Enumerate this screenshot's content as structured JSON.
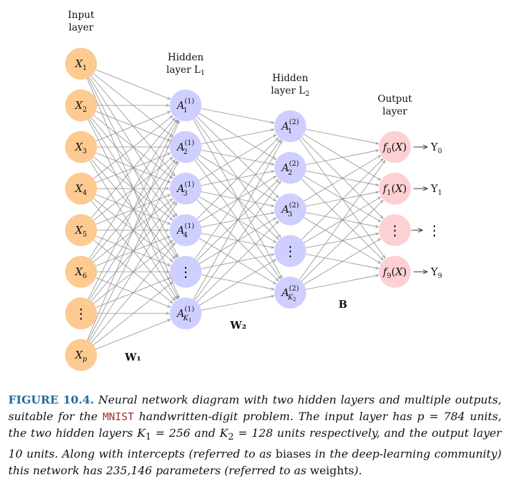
{
  "layers": {
    "input": {
      "title_line1": "Input",
      "title_line2": "layer",
      "color": "#fdca92"
    },
    "hidden1": {
      "title_line1": "Hidden",
      "title_line2": "layer L",
      "title_sub": "1",
      "color": "#cfcfff"
    },
    "hidden2": {
      "title_line1": "Hidden",
      "title_line2": "layer L",
      "title_sub": "2",
      "color": "#cfcfff"
    },
    "output": {
      "title_line1": "Output",
      "title_line2": "layer",
      "color": "#fdd0d3"
    }
  },
  "input_nodes": [
    "X1",
    "X2",
    "X3",
    "X4",
    "X5",
    "X6",
    "⋮",
    "Xp"
  ],
  "hidden1_nodes": [
    "A1(1)",
    "A2(1)",
    "A3(1)",
    "A4(1)",
    "⋮",
    "AK1(1)"
  ],
  "hidden2_nodes": [
    "A1(2)",
    "A2(2)",
    "A3(2)",
    "⋮",
    "AK2(2)"
  ],
  "output_nodes": [
    "f0(X)",
    "f1(X)",
    "⋮",
    "f9(X)"
  ],
  "outputs": [
    "Y0",
    "Y1",
    "⋮",
    "Y9"
  ],
  "weights": {
    "w1": "W₁",
    "w2": "W₂",
    "b": "B"
  },
  "edge_color": "#8c8c8c",
  "caption": {
    "figure_label": "FIGURE 10.4.",
    "part1": " Neural network diagram with two hidden layers and multiple outputs, suitable for the ",
    "mnist": "MNIST",
    "part2": " handwritten-digit problem. The input layer has p = 784 units, the two hidden layers K",
    "k1_sub": "1",
    "part3": " = 256 and K",
    "k2_sub": "2",
    "part4": " = 128 units respectively, and the output layer 10 units. Along with intercepts (referred to as ",
    "biases_text": "biases",
    "part5": " in the deep-learning community) this network has 235,146 parameters (referred to as ",
    "weights_text": "weights",
    "part6": ")."
  }
}
